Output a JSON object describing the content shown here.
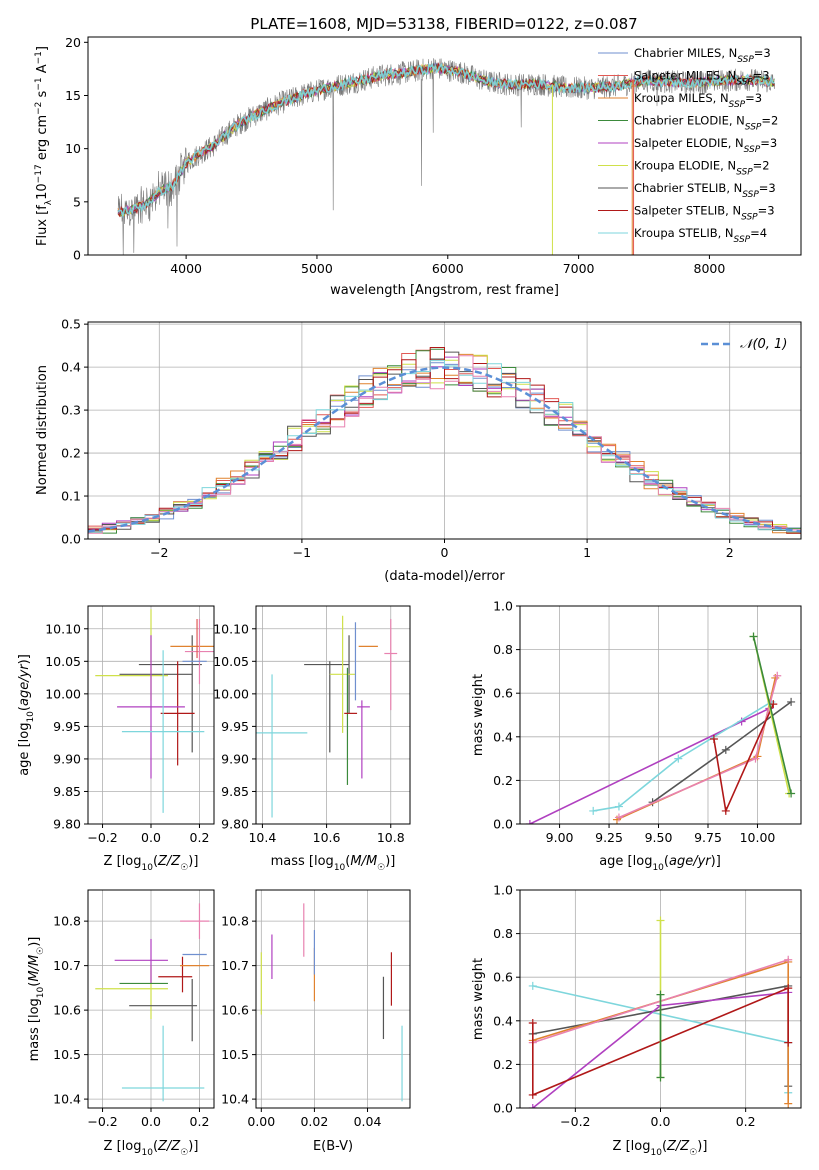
{
  "title": "PLATE=1608, MJD=53138, FIBERID=0122, z=0.087",
  "colors": {
    "Chabrier MILES": "#6f8fcf",
    "Salpeter MILES": "#e25a55",
    "Kroupa MILES": "#e0822f",
    "Chabrier ELODIE": "#3b8a3b",
    "Salpeter ELODIE": "#b040c0",
    "Kroupa ELODIE": "#cfe04a",
    "Chabrier STELIB": "#555555",
    "Salpeter STELIB": "#b01818",
    "Kroupa STELIB": "#7ed6dc",
    "pink": "#e882b0"
  },
  "chart_data": [
    {
      "id": "spectrum",
      "type": "line",
      "title": "PLATE=1608, MJD=53138, FIBERID=0122, z=0.087",
      "xlabel": "wavelength [Angstrom, rest frame]",
      "ylabel": "Flux [fλ10⁻¹⁷ erg cm⁻² s⁻¹ A⁻¹]",
      "xlim": [
        3250,
        8700
      ],
      "ylim": [
        0,
        20.5
      ],
      "xticks": [
        4000,
        5000,
        6000,
        7000,
        8000
      ],
      "yticks": [
        0,
        5,
        10,
        15,
        20
      ],
      "grid": false,
      "legend_position": "right",
      "continuum": {
        "x": [
          3480,
          3600,
          3700,
          3800,
          3900,
          4000,
          4100,
          4200,
          4300,
          4400,
          4500,
          4700,
          4900,
          5100,
          5300,
          5500,
          5700,
          5900,
          6100,
          6300,
          6500,
          6700,
          6900,
          7100,
          7300,
          7500,
          7700,
          7900,
          8100,
          8300,
          8500
        ],
        "y": [
          4.0,
          4.3,
          4.8,
          6.0,
          6.5,
          8.7,
          9.5,
          10.2,
          11.3,
          12.3,
          13.0,
          14.2,
          15.1,
          15.8,
          16.3,
          16.9,
          17.2,
          17.6,
          17.2,
          16.3,
          16.0,
          16.1,
          15.7,
          15.7,
          15.9,
          16.4,
          16.3,
          16.2,
          16.4,
          16.5,
          16.2
        ]
      },
      "series": [
        {
          "name": "Chabrier MILES, N_SSP=3",
          "color": "#6f8fcf"
        },
        {
          "name": "Salpeter MILES, N_SSP=3",
          "color": "#e25a55"
        },
        {
          "name": "Kroupa MILES, N_SSP=3",
          "color": "#e0822f"
        },
        {
          "name": "Chabrier ELODIE, N_SSP=2",
          "color": "#3b8a3b"
        },
        {
          "name": "Salpeter ELODIE, N_SSP=3",
          "color": "#b040c0"
        },
        {
          "name": "Kroupa ELODIE, N_SSP=2",
          "color": "#cfe04a"
        },
        {
          "name": "Chabrier STELIB, N_SSP=3",
          "color": "#555555"
        },
        {
          "name": "Salpeter STELIB, N_SSP=3",
          "color": "#b01818"
        },
        {
          "name": "Kroupa STELIB, N_SSP=4",
          "color": "#7ed6dc"
        }
      ]
    },
    {
      "id": "residuals",
      "type": "line",
      "xlabel": "(data-model)/error",
      "ylabel": "Normed distribution",
      "xlim": [
        -2.5,
        2.5
      ],
      "ylim": [
        0,
        0.505
      ],
      "xticks": [
        -2,
        -1,
        0,
        1,
        2
      ],
      "yticks": [
        0.0,
        0.1,
        0.2,
        0.3,
        0.4,
        0.5
      ],
      "grid": true,
      "legend": "N(0,1)",
      "legend_position": "top-right",
      "bin_width": 0.1
    },
    {
      "id": "age-vs-Z",
      "type": "scatter",
      "xlabel": "Z [log10(Z/Z☉)]",
      "ylabel": "age [log10(age/yr)]",
      "xlim": [
        -0.26,
        0.26
      ],
      "ylim": [
        9.8,
        10.135
      ],
      "xticks": [
        -0.2,
        0.0,
        0.2
      ],
      "yticks": [
        9.8,
        9.85,
        9.9,
        9.95,
        10.0,
        10.05,
        10.1
      ],
      "grid": true,
      "points": [
        {
          "color": "#cfe04a",
          "x": 0.0,
          "xerr": 0.0,
          "y": 10.06,
          "yerr": 0.07
        },
        {
          "color": "#cfe04a",
          "x": -0.08,
          "xerr": 0.15,
          "y": 10.028,
          "yerr": 0.0
        },
        {
          "color": "#555555",
          "x": 0.02,
          "xerr": 0.15,
          "y": 10.03,
          "yerr": 0.0
        },
        {
          "color": "#555555",
          "x": 0.08,
          "xerr": 0.13,
          "y": 10.045,
          "yerr": 0.0
        },
        {
          "color": "#555555",
          "x": 0.17,
          "xerr": 0.0,
          "y": 10.0,
          "yerr": 0.09
        },
        {
          "color": "#b01818",
          "x": 0.11,
          "xerr": 0.07,
          "y": 9.97,
          "yerr": 0.08
        },
        {
          "color": "#b040c0",
          "x": 0.0,
          "xerr": 0.14,
          "y": 9.98,
          "yerr": 0.11
        },
        {
          "color": "#7ed6dc",
          "x": 0.05,
          "xerr": 0.17,
          "y": 9.942,
          "yerr": 0.125
        },
        {
          "color": "#e0822f",
          "x": 0.18,
          "xerr": 0.1,
          "y": 10.073,
          "yerr": 0.0
        },
        {
          "color": "#e882b0",
          "x": 0.2,
          "xerr": 0.06,
          "y": 10.065,
          "yerr": 0.05
        },
        {
          "color": "#e25a55",
          "x": 0.19,
          "xerr": 0.0,
          "y": 10.085,
          "yerr": 0.03
        },
        {
          "color": "#6f8fcf",
          "x": 0.18,
          "xerr": 0.05,
          "y": 10.05,
          "yerr": 0.0
        }
      ]
    },
    {
      "id": "age-vs-mass",
      "type": "scatter",
      "xlabel": "mass [log10(M/M☉)]",
      "xlim": [
        10.38,
        10.86
      ],
      "ylim": [
        9.8,
        10.135
      ],
      "xticks": [
        10.4,
        10.6,
        10.8
      ],
      "yticks": [
        9.8,
        9.85,
        9.9,
        9.95,
        10.0,
        10.05,
        10.1
      ],
      "grid": true,
      "points": [
        {
          "color": "#7ed6dc",
          "x": 10.43,
          "xerr": 0.11,
          "y": 9.94,
          "yerr": 0.0
        },
        {
          "color": "#7ed6dc",
          "x": 10.43,
          "xerr": 0.0,
          "y": 9.92,
          "yerr": 0.11
        },
        {
          "color": "#555555",
          "x": 10.6,
          "xerr": 0.07,
          "y": 10.045,
          "yerr": 0.0
        },
        {
          "color": "#555555",
          "x": 10.61,
          "xerr": 0.0,
          "y": 9.98,
          "yerr": 0.07
        },
        {
          "color": "#555555",
          "x": 10.67,
          "xerr": 0.0,
          "y": 10.03,
          "yerr": 0.06
        },
        {
          "color": "#cfe04a",
          "x": 10.65,
          "xerr": 0.04,
          "y": 10.03,
          "yerr": 0.09
        },
        {
          "color": "#3b8a3b",
          "x": 10.665,
          "xerr": 0.0,
          "y": 9.95,
          "yerr": 0.09
        },
        {
          "color": "#b01818",
          "x": 10.675,
          "xerr": 0.02,
          "y": 9.97,
          "yerr": 0.0
        },
        {
          "color": "#b040c0",
          "x": 10.715,
          "xerr": 0.02,
          "y": 9.98,
          "yerr": 0.0
        },
        {
          "color": "#b040c0",
          "x": 10.71,
          "xerr": 0.0,
          "y": 9.93,
          "yerr": 0.06
        },
        {
          "color": "#e0822f",
          "x": 10.73,
          "xerr": 0.03,
          "y": 10.073,
          "yerr": 0.0
        },
        {
          "color": "#e882b0",
          "x": 10.8,
          "xerr": 0.02,
          "y": 10.062,
          "yerr": 0.0
        },
        {
          "color": "#e882b0",
          "x": 10.8,
          "xerr": 0.0,
          "y": 10.045,
          "yerr": 0.07
        },
        {
          "color": "#6f8fcf",
          "x": 10.69,
          "xerr": 0.0,
          "y": 10.05,
          "yerr": 0.06
        }
      ]
    },
    {
      "id": "massweight-vs-age",
      "type": "line",
      "xlabel": "age [log10(age/yr)]",
      "ylabel": "mass weight",
      "xlim": [
        8.8,
        10.22
      ],
      "ylim": [
        0.0,
        1.0
      ],
      "xticks": [
        9.0,
        9.25,
        9.5,
        9.75,
        10.0
      ],
      "yticks": [
        0.0,
        0.2,
        0.4,
        0.6,
        0.8,
        1.0
      ],
      "grid": true,
      "series": [
        {
          "color": "#b040c0",
          "x": [
            8.85,
            9.92,
            10.06
          ],
          "y": [
            0.0,
            0.47,
            0.53
          ]
        },
        {
          "color": "#7ed6dc",
          "x": [
            9.17,
            9.3,
            9.6,
            10.07
          ],
          "y": [
            0.06,
            0.08,
            0.3,
            0.56
          ]
        },
        {
          "color": "#555555",
          "x": [
            9.47,
            9.84,
            10.17
          ],
          "y": [
            0.1,
            0.34,
            0.56
          ]
        },
        {
          "color": "#e0822f",
          "x": [
            9.29,
            10.0,
            10.09
          ],
          "y": [
            0.02,
            0.31,
            0.67
          ]
        },
        {
          "color": "#e882b0",
          "x": [
            9.3,
            9.99,
            10.1
          ],
          "y": [
            0.03,
            0.3,
            0.68
          ]
        },
        {
          "color": "#b01818",
          "x": [
            9.78,
            9.84,
            10.08
          ],
          "y": [
            0.39,
            0.06,
            0.55
          ]
        },
        {
          "color": "#cfe04a",
          "x": [
            9.98,
            10.16
          ],
          "y": [
            0.86,
            0.14
          ]
        },
        {
          "color": "#3b8a3b",
          "x": [
            9.98,
            10.17
          ],
          "y": [
            0.86,
            0.14
          ]
        }
      ]
    },
    {
      "id": "mass-vs-Z",
      "type": "scatter",
      "xlabel": "Z [log10(Z/Z☉)]",
      "ylabel": "mass [log10(M/M☉)]",
      "xlim": [
        -0.26,
        0.26
      ],
      "ylim": [
        10.38,
        10.87
      ],
      "xticks": [
        -0.2,
        0.0,
        0.2
      ],
      "yticks": [
        10.4,
        10.5,
        10.6,
        10.7,
        10.8
      ],
      "grid": true,
      "points": [
        {
          "color": "#cfe04a",
          "x": -0.08,
          "xerr": 0.15,
          "y": 10.648,
          "yerr": 0.0
        },
        {
          "color": "#cfe04a",
          "x": 0.0,
          "xerr": 0.0,
          "y": 10.64,
          "yerr": 0.06
        },
        {
          "color": "#b040c0",
          "x": -0.04,
          "xerr": 0.11,
          "y": 10.712,
          "yerr": 0.0
        },
        {
          "color": "#b040c0",
          "x": 0.0,
          "xerr": 0.0,
          "y": 10.71,
          "yerr": 0.05
        },
        {
          "color": "#3b8a3b",
          "x": -0.03,
          "xerr": 0.1,
          "y": 10.66,
          "yerr": 0.0
        },
        {
          "color": "#555555",
          "x": 0.05,
          "xerr": 0.14,
          "y": 10.61,
          "yerr": 0.0
        },
        {
          "color": "#555555",
          "x": 0.17,
          "xerr": 0.0,
          "y": 10.6,
          "yerr": 0.07
        },
        {
          "color": "#b01818",
          "x": 0.1,
          "xerr": 0.07,
          "y": 10.675,
          "yerr": 0.0
        },
        {
          "color": "#b01818",
          "x": 0.13,
          "xerr": 0.0,
          "y": 10.68,
          "yerr": 0.04
        },
        {
          "color": "#7ed6dc",
          "x": 0.05,
          "xerr": 0.17,
          "y": 10.425,
          "yerr": 0.0
        },
        {
          "color": "#7ed6dc",
          "x": 0.05,
          "xerr": 0.0,
          "y": 10.48,
          "yerr": 0.085
        },
        {
          "color": "#e882b0",
          "x": 0.18,
          "xerr": 0.06,
          "y": 10.8,
          "yerr": 0.0
        },
        {
          "color": "#e882b0",
          "x": 0.2,
          "xerr": 0.0,
          "y": 10.8,
          "yerr": 0.04
        },
        {
          "color": "#e0822f",
          "x": 0.18,
          "xerr": 0.06,
          "y": 10.7,
          "yerr": 0.0
        },
        {
          "color": "#6f8fcf",
          "x": 0.18,
          "xerr": 0.05,
          "y": 10.725,
          "yerr": 0.0
        }
      ]
    },
    {
      "id": "mass-vs-ebv",
      "type": "scatter",
      "xlabel": "E(B-V)",
      "xlim": [
        -0.002,
        0.056
      ],
      "ylim": [
        10.38,
        10.87
      ],
      "xticks": [
        0.0,
        0.02,
        0.04
      ],
      "yticks": [
        10.4,
        10.5,
        10.6,
        10.7,
        10.8
      ],
      "grid": true,
      "points": [
        {
          "color": "#cfe04a",
          "x": 0.0,
          "xerr": 0.0,
          "y": 10.66,
          "yerr": 0.07
        },
        {
          "color": "#b040c0",
          "x": 0.004,
          "xerr": 0.0,
          "y": 10.72,
          "yerr": 0.05
        },
        {
          "color": "#e882b0",
          "x": 0.016,
          "xerr": 0.0,
          "y": 10.78,
          "yerr": 0.06
        },
        {
          "color": "#e0822f",
          "x": 0.02,
          "xerr": 0.0,
          "y": 10.68,
          "yerr": 0.06
        },
        {
          "color": "#6f8fcf",
          "x": 0.02,
          "xerr": 0.0,
          "y": 10.73,
          "yerr": 0.05
        },
        {
          "color": "#555555",
          "x": 0.046,
          "xerr": 0.0,
          "y": 10.605,
          "yerr": 0.07
        },
        {
          "color": "#b01818",
          "x": 0.049,
          "xerr": 0.0,
          "y": 10.67,
          "yerr": 0.06
        },
        {
          "color": "#7ed6dc",
          "x": 0.053,
          "xerr": 0.0,
          "y": 10.48,
          "yerr": 0.085
        }
      ]
    },
    {
      "id": "massweight-vs-Z",
      "type": "line",
      "xlabel": "Z [log10(Z/Z☉)]",
      "ylabel": "mass weight",
      "xlim": [
        -0.33,
        0.33
      ],
      "ylim": [
        0.0,
        1.0
      ],
      "xticks": [
        -0.2,
        0.0,
        0.2
      ],
      "yticks": [
        0.0,
        0.2,
        0.4,
        0.6,
        0.8,
        1.0
      ],
      "grid": true,
      "series": [
        {
          "color": "#7ed6dc",
          "x": [
            -0.3,
            0.3,
            0.3
          ],
          "y": [
            0.56,
            0.3,
            0.07
          ]
        },
        {
          "color": "#555555",
          "x": [
            -0.3,
            0.3,
            0.3
          ],
          "y": [
            0.34,
            0.56,
            0.1
          ]
        },
        {
          "color": "#e0822f",
          "x": [
            -0.3,
            0.3,
            0.3
          ],
          "y": [
            0.31,
            0.67,
            0.02
          ]
        },
        {
          "color": "#e882b0",
          "x": [
            -0.3,
            0.3
          ],
          "y": [
            0.3,
            0.68
          ]
        },
        {
          "color": "#b040c0",
          "x": [
            -0.3,
            0.0,
            0.3
          ],
          "y": [
            0.0,
            0.47,
            0.53
          ]
        },
        {
          "color": "#b01818",
          "x": [
            -0.3,
            -0.3,
            0.3,
            0.3
          ],
          "y": [
            0.39,
            0.06,
            0.55,
            0.3
          ]
        },
        {
          "color": "#cfe04a",
          "x": [
            0.0,
            0.0
          ],
          "y": [
            0.86,
            0.14
          ]
        },
        {
          "color": "#3b8a3b",
          "x": [
            0.0,
            0.0
          ],
          "y": [
            0.52,
            0.14
          ]
        }
      ]
    }
  ]
}
